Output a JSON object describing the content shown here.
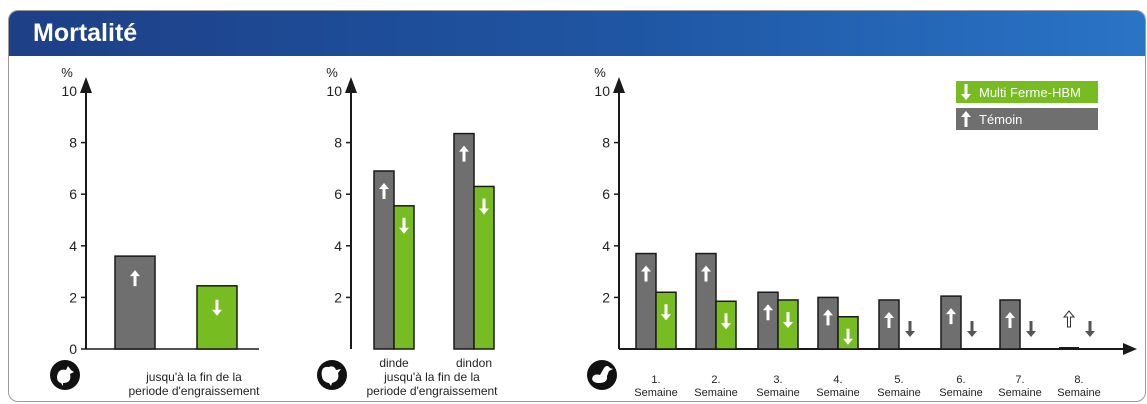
{
  "title": "Mortalité",
  "colors": {
    "header": "#1f56a4",
    "grey": "#6f6f6f",
    "green": "#77bc21",
    "dark": "#1a1a1a"
  },
  "legend": {
    "green": "Multi Ferme-HBM",
    "grey": "Témoin"
  },
  "chart_data": [
    {
      "type": "bar",
      "ylabel": "%",
      "ylim": [
        0,
        10
      ],
      "yticks": [
        "0",
        "2",
        "4",
        "6",
        "8",
        "10"
      ],
      "icon": "chicken-icon",
      "categories": [
        ""
      ],
      "series": [
        {
          "name": "Témoin",
          "values": [
            3.6
          ]
        },
        {
          "name": "Multi Ferme-HBM",
          "values": [
            2.45
          ]
        }
      ],
      "caption": [
        "jusqu'à la fin de la",
        "periode d'engraissement"
      ]
    },
    {
      "type": "bar",
      "ylabel": "%",
      "ylim": [
        0,
        10
      ],
      "yticks": [
        "2",
        "4",
        "6",
        "8",
        "10"
      ],
      "icon": "turkey-icon",
      "categories": [
        "dinde",
        "dindon"
      ],
      "series": [
        {
          "name": "Témoin",
          "values": [
            6.9,
            8.35
          ]
        },
        {
          "name": "Multi Ferme-HBM",
          "values": [
            5.55,
            6.3
          ]
        }
      ],
      "caption": [
        "jusqu'à la fin de la",
        "periode d'engraissement"
      ]
    },
    {
      "type": "bar",
      "ylabel": "%",
      "ylim": [
        0,
        10
      ],
      "yticks": [
        "2",
        "4",
        "6",
        "8",
        "10"
      ],
      "icon": "duck-icon",
      "categories": [
        "1. Semaine",
        "2. Semaine",
        "3. Semaine",
        "4. Semaine",
        "5. Semaine",
        "6. Semaine",
        "7. Semaine",
        "8. Semaine"
      ],
      "series": [
        {
          "name": "Témoin",
          "values": [
            3.7,
            3.7,
            2.2,
            2.0,
            1.9,
            2.05,
            1.9,
            0.05
          ]
        },
        {
          "name": "Multi Ferme-HBM",
          "values": [
            2.2,
            1.85,
            1.9,
            1.25,
            0,
            0,
            0,
            0
          ]
        }
      ]
    }
  ]
}
